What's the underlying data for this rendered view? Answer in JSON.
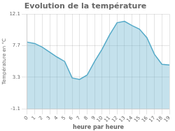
{
  "chart_data": {
    "type": "area",
    "title": "Evolution de la température",
    "x_label": "heure par heure",
    "y_label": "Température en °C",
    "x": [
      0,
      1,
      2,
      3,
      4,
      5,
      6,
      7,
      8,
      9,
      10,
      11,
      12,
      13,
      14,
      15,
      16,
      17,
      18,
      19
    ],
    "values": [
      8.2,
      8.0,
      7.5,
      6.8,
      6.1,
      5.5,
      3.2,
      3.0,
      3.6,
      5.5,
      7.2,
      9.2,
      10.9,
      11.1,
      10.5,
      10.0,
      8.8,
      6.5,
      5.1,
      5.0
    ],
    "color": "#55aac8",
    "xlim": [
      0,
      19
    ],
    "xticks": [
      0,
      1,
      2,
      3,
      4,
      5,
      6,
      7,
      8,
      9,
      10,
      11,
      12,
      13,
      14,
      15,
      16,
      17,
      18,
      19
    ],
    "ylim": [
      -1.1,
      12.1
    ],
    "yticks": [
      -1.1,
      3.3,
      7.7,
      12.1
    ],
    "grid": true
  }
}
